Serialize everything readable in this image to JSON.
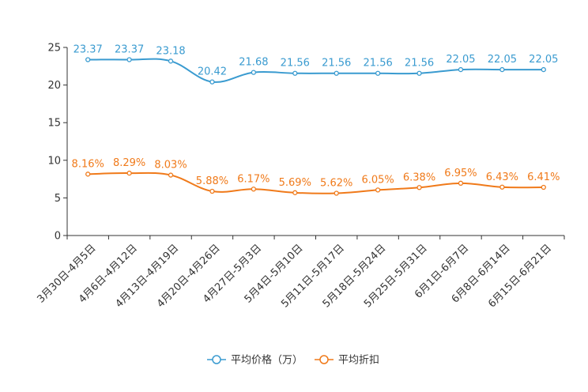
{
  "chart_data": {
    "type": "line",
    "title": "",
    "xlabel": "",
    "ylabel": "",
    "ylim": [
      0,
      25
    ],
    "yticks": [
      0,
      5,
      10,
      15,
      20,
      25
    ],
    "grid": false,
    "legend_position": "bottom",
    "categories": [
      "3月30日-4月5日",
      "4月6日-4月12日",
      "4月13日-4月19日",
      "4月20日-4月26日",
      "4月27日-5月3日",
      "5月4日-5月10日",
      "5月11日-5月17日",
      "5月18日-5月24日",
      "5月25日-5月31日",
      "6月1日-6月7日",
      "6月8日-6月14日",
      "6月15日-6月21日"
    ],
    "series": [
      {
        "name": "平均价格（万）",
        "color": "#3a9bd0",
        "values": [
          23.37,
          23.37,
          23.18,
          20.42,
          21.68,
          21.56,
          21.56,
          21.56,
          21.56,
          22.05,
          22.05,
          22.05
        ],
        "labels": [
          "23.37",
          "23.37",
          "23.18",
          "20.42",
          "21.68",
          "21.56",
          "21.56",
          "21.56",
          "21.56",
          "22.05",
          "22.05",
          "22.05"
        ]
      },
      {
        "name": "平均折扣",
        "color": "#f07a1a",
        "values": [
          8.16,
          8.29,
          8.03,
          5.88,
          6.17,
          5.69,
          5.62,
          6.05,
          6.38,
          6.95,
          6.43,
          6.41
        ],
        "labels": [
          "8.16%",
          "8.29%",
          "8.03%",
          "5.88%",
          "6.17%",
          "5.69%",
          "5.62%",
          "6.05%",
          "6.38%",
          "6.95%",
          "6.43%",
          "6.41%"
        ]
      }
    ]
  }
}
